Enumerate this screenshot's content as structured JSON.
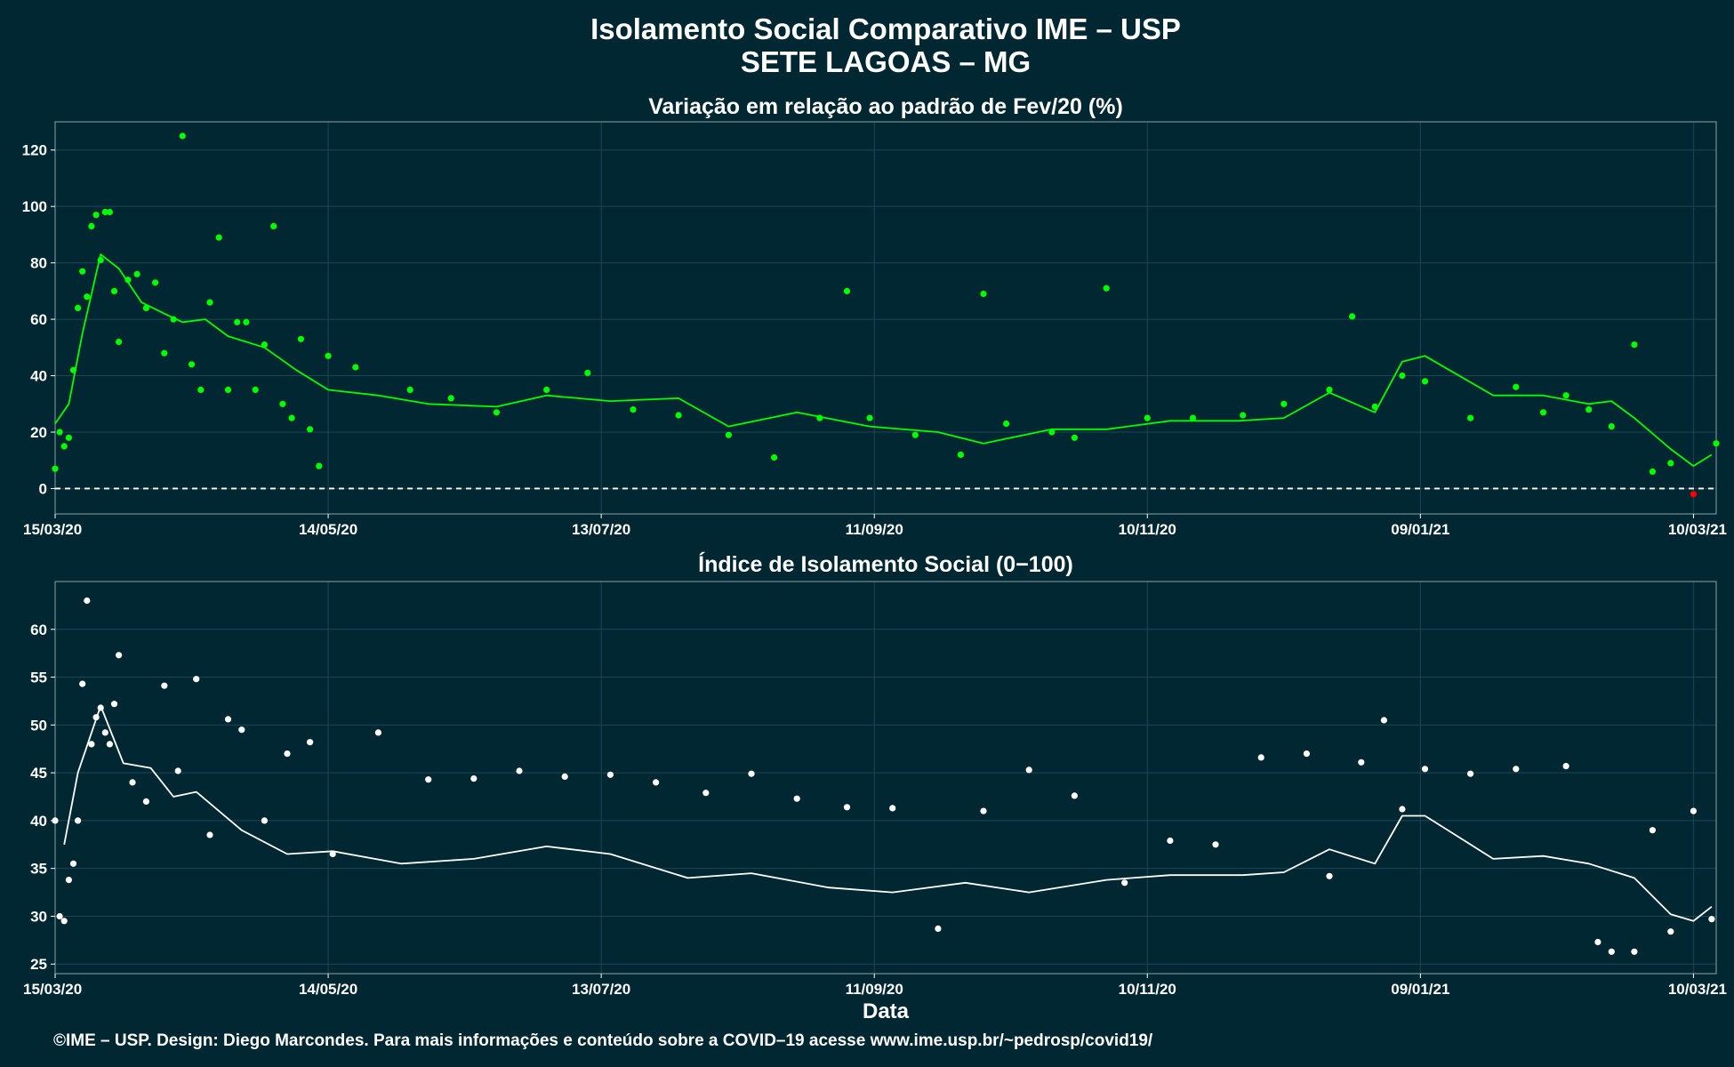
{
  "title_line1": "Isolamento Social Comparativo IME – USP",
  "title_line2": "SETE LAGOAS – MG",
  "xlabel": "Data",
  "footer": "©IME – USP. Design: Diego Marcondes. Para mais informações e conteúdo sobre a COVID–19 acesse www.ime.usp.br/~pedrosp/covid19/",
  "colors": {
    "background": "#012733",
    "top_series": "#00ff00",
    "top_negative": "#ff0000",
    "bottom_series": "#ffffff",
    "grid": "#1d4654"
  },
  "chart_data": [
    {
      "type": "scatter",
      "title": "Variação em relação ao padrão de Fev/20 (%)",
      "xlabel": "",
      "ylabel": "",
      "x_range": [
        "2020-03-15",
        "2021-03-15"
      ],
      "x_ticks": [
        "15/03/20",
        "14/05/20",
        "13/07/20",
        "11/09/20",
        "10/11/20",
        "09/01/21",
        "10/03/21"
      ],
      "ylim": [
        -9,
        130
      ],
      "y_ticks": [
        0,
        20,
        40,
        60,
        80,
        100,
        120
      ],
      "reference_line": 0,
      "grid": true,
      "series": [
        {
          "name": "",
          "kind": "points",
          "x": [
            "2020-03-15",
            "2020-03-16",
            "2020-03-17",
            "2020-03-18",
            "2020-03-19",
            "2020-03-20",
            "2020-03-21",
            "2020-03-22",
            "2020-03-23",
            "2020-03-24",
            "2020-03-25",
            "2020-03-26",
            "2020-03-27",
            "2020-03-28",
            "2020-03-29",
            "2020-03-31",
            "2020-04-02",
            "2020-04-04",
            "2020-04-06",
            "2020-04-08",
            "2020-04-10",
            "2020-04-12",
            "2020-04-14",
            "2020-04-16",
            "2020-04-18",
            "2020-04-20",
            "2020-04-22",
            "2020-04-24",
            "2020-04-26",
            "2020-04-28",
            "2020-04-30",
            "2020-05-02",
            "2020-05-04",
            "2020-05-06",
            "2020-05-08",
            "2020-05-10",
            "2020-05-12",
            "2020-05-14",
            "2020-05-20",
            "2020-06-01",
            "2020-06-10",
            "2020-06-20",
            "2020-07-01",
            "2020-07-10",
            "2020-07-20",
            "2020-07-30",
            "2020-08-10",
            "2020-08-20",
            "2020-08-30",
            "2020-09-05",
            "2020-09-10",
            "2020-09-20",
            "2020-09-30",
            "2020-10-05",
            "2020-10-10",
            "2020-10-20",
            "2020-10-25",
            "2020-11-01",
            "2020-11-10",
            "2020-11-20",
            "2020-12-01",
            "2020-12-10",
            "2020-12-20",
            "2020-12-25",
            "2020-12-30",
            "2021-01-05",
            "2021-01-10",
            "2021-01-20",
            "2021-01-30",
            "2021-02-05",
            "2021-02-10",
            "2021-02-15",
            "2021-02-20",
            "2021-02-25",
            "2021-03-01",
            "2021-03-05",
            "2021-03-10",
            "2021-03-15"
          ],
          "y": [
            7,
            20,
            15,
            18,
            42,
            64,
            77,
            68,
            93,
            97,
            81,
            98,
            98,
            70,
            52,
            74,
            76,
            64,
            73,
            48,
            60,
            125,
            44,
            35,
            66,
            89,
            35,
            59,
            59,
            35,
            51,
            93,
            30,
            25,
            53,
            21,
            8,
            47,
            43,
            35,
            32,
            27,
            35,
            41,
            28,
            26,
            19,
            11,
            25,
            70,
            25,
            19,
            12,
            69,
            23,
            20,
            18,
            71,
            25,
            25,
            26,
            30,
            35,
            61,
            29,
            40,
            38,
            25,
            36,
            27,
            33,
            28,
            22,
            51,
            6,
            9,
            -2,
            16
          ]
        },
        {
          "name": "",
          "kind": "moving_average",
          "x": [
            "2020-03-15",
            "2020-03-18",
            "2020-03-21",
            "2020-03-25",
            "2020-03-29",
            "2020-04-03",
            "2020-04-08",
            "2020-04-12",
            "2020-04-17",
            "2020-04-22",
            "2020-04-30",
            "2020-05-07",
            "2020-05-14",
            "2020-05-25",
            "2020-06-05",
            "2020-06-20",
            "2020-07-01",
            "2020-07-15",
            "2020-07-30",
            "2020-08-10",
            "2020-08-25",
            "2020-09-10",
            "2020-09-25",
            "2020-10-05",
            "2020-10-20",
            "2020-11-01",
            "2020-11-15",
            "2020-11-30",
            "2020-12-10",
            "2020-12-20",
            "2020-12-30",
            "2021-01-05",
            "2021-01-10",
            "2021-01-25",
            "2021-02-05",
            "2021-02-15",
            "2021-02-20",
            "2021-02-25",
            "2021-03-05",
            "2021-03-10",
            "2021-03-14"
          ],
          "y": [
            23,
            30,
            55,
            83,
            78,
            66,
            62,
            59,
            60,
            54,
            50,
            42,
            35,
            33,
            30,
            29,
            33,
            31,
            32,
            22,
            27,
            22,
            20,
            16,
            21,
            21,
            24,
            24,
            25,
            34,
            27,
            45,
            47,
            33,
            33,
            30,
            31,
            25,
            14,
            8,
            12
          ]
        }
      ]
    },
    {
      "type": "scatter",
      "title": "Índice de Isolamento Social (0−100)",
      "xlabel": "Data",
      "ylabel": "",
      "x_range": [
        "2020-03-15",
        "2021-03-15"
      ],
      "x_ticks": [
        "15/03/20",
        "14/05/20",
        "13/07/20",
        "11/09/20",
        "10/11/20",
        "09/01/21",
        "10/03/21"
      ],
      "ylim": [
        24,
        65
      ],
      "y_ticks": [
        25,
        30,
        35,
        40,
        45,
        50,
        55,
        60
      ],
      "grid": true,
      "series": [
        {
          "name": "",
          "kind": "points",
          "x": [
            "2020-03-15",
            "2020-03-16",
            "2020-03-17",
            "2020-03-18",
            "2020-03-19",
            "2020-03-20",
            "2020-03-21",
            "2020-03-22",
            "2020-03-23",
            "2020-03-24",
            "2020-03-25",
            "2020-03-26",
            "2020-03-27",
            "2020-03-28",
            "2020-03-29",
            "2020-04-01",
            "2020-04-04",
            "2020-04-08",
            "2020-04-11",
            "2020-04-15",
            "2020-04-18",
            "2020-04-22",
            "2020-04-25",
            "2020-04-30",
            "2020-05-05",
            "2020-05-10",
            "2020-05-15",
            "2020-05-25",
            "2020-06-05",
            "2020-06-15",
            "2020-06-25",
            "2020-07-05",
            "2020-07-15",
            "2020-07-25",
            "2020-08-05",
            "2020-08-15",
            "2020-08-25",
            "2020-09-05",
            "2020-09-15",
            "2020-09-25",
            "2020-10-05",
            "2020-10-15",
            "2020-10-25",
            "2020-11-05",
            "2020-11-15",
            "2020-11-25",
            "2020-12-05",
            "2020-12-15",
            "2020-12-20",
            "2020-12-27",
            "2021-01-01",
            "2021-01-05",
            "2021-01-10",
            "2021-01-20",
            "2021-01-30",
            "2021-02-10",
            "2021-02-17",
            "2021-02-20",
            "2021-02-25",
            "2021-03-01",
            "2021-03-05",
            "2021-03-10",
            "2021-03-14"
          ],
          "y": [
            40,
            30,
            29.5,
            33.8,
            35.5,
            40,
            54.3,
            63,
            48,
            50.8,
            51.8,
            49.2,
            48,
            52.2,
            57.3,
            44,
            42,
            54.1,
            45.2,
            54.8,
            38.5,
            50.6,
            49.5,
            40,
            47,
            48.2,
            36.5,
            49.2,
            44.3,
            44.4,
            45.2,
            44.6,
            44.8,
            44,
            42.9,
            44.9,
            42.3,
            41.4,
            41.3,
            28.7,
            41,
            45.3,
            42.6,
            33.5,
            37.9,
            37.5,
            46.6,
            47,
            34.2,
            46.1,
            50.5,
            41.2,
            45.4,
            44.9,
            45.4,
            45.7,
            27.3,
            26.3,
            26.3,
            39,
            28.4,
            41,
            29.7
          ]
        },
        {
          "name": "",
          "kind": "moving_average",
          "x": [
            "2020-03-17",
            "2020-03-20",
            "2020-03-25",
            "2020-03-30",
            "2020-04-05",
            "2020-04-10",
            "2020-04-15",
            "2020-04-20",
            "2020-04-25",
            "2020-05-05",
            "2020-05-15",
            "2020-05-30",
            "2020-06-15",
            "2020-07-01",
            "2020-07-15",
            "2020-08-01",
            "2020-08-15",
            "2020-09-01",
            "2020-09-15",
            "2020-10-01",
            "2020-10-15",
            "2020-11-01",
            "2020-11-15",
            "2020-12-01",
            "2020-12-10",
            "2020-12-20",
            "2020-12-30",
            "2021-01-05",
            "2021-01-10",
            "2021-01-25",
            "2021-02-05",
            "2021-02-15",
            "2021-02-25",
            "2021-03-05",
            "2021-03-10",
            "2021-03-14"
          ],
          "y": [
            37.5,
            45,
            52,
            46,
            45.5,
            42.5,
            43,
            41,
            39,
            36.5,
            36.8,
            35.5,
            36,
            37.3,
            36.5,
            34,
            34.5,
            33,
            32.5,
            33.5,
            32.5,
            33.8,
            34.3,
            34.3,
            34.6,
            37,
            35.5,
            40.5,
            40.5,
            36,
            36.3,
            35.5,
            34,
            30.2,
            29.5,
            31
          ]
        }
      ]
    }
  ]
}
